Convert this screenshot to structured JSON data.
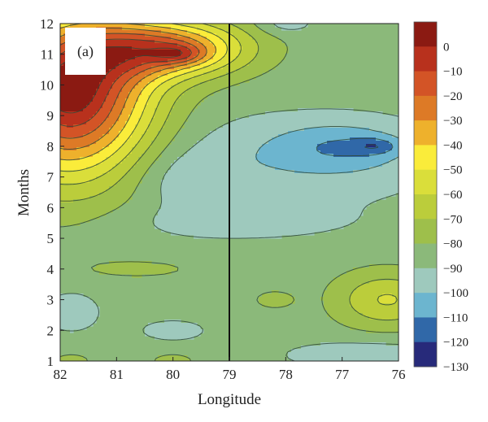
{
  "chart_data": {
    "type": "heatmap",
    "subtype": "filled-contour",
    "panel_label": "(a)",
    "xlabel": "Longitude",
    "ylabel": "Months",
    "x_ticks": [
      "82",
      "81",
      "80",
      "79",
      "78",
      "77",
      "76"
    ],
    "y_ticks": [
      "1",
      "2",
      "3",
      "4",
      "5",
      "6",
      "7",
      "8",
      "9",
      "10",
      "11",
      "12"
    ],
    "xlim": [
      82,
      76
    ],
    "ylim": [
      1,
      12
    ],
    "vertical_marker_x": 79,
    "colorbar": {
      "tick_labels": [
        "0",
        "−10",
        "−20",
        "−30",
        "−40",
        "−50",
        "−60",
        "−70",
        "−80",
        "−90",
        "−100",
        "−110",
        "−120",
        "−130"
      ],
      "bins": [
        {
          "lo": 0,
          "hi": 10,
          "color": "#8b1a12"
        },
        {
          "lo": -10,
          "hi": 0,
          "color": "#b8311d"
        },
        {
          "lo": -20,
          "hi": -10,
          "color": "#d35426"
        },
        {
          "lo": -30,
          "hi": -20,
          "color": "#dd7a26"
        },
        {
          "lo": -40,
          "hi": -30,
          "color": "#eeb12c"
        },
        {
          "lo": -50,
          "hi": -40,
          "color": "#faec3a"
        },
        {
          "lo": -60,
          "hi": -50,
          "color": "#dade3a"
        },
        {
          "lo": -70,
          "hi": -60,
          "color": "#bbcd3b"
        },
        {
          "lo": -80,
          "hi": -70,
          "color": "#9ebf4b"
        },
        {
          "lo": -90,
          "hi": -80,
          "color": "#8bb97a"
        },
        {
          "lo": -100,
          "hi": -90,
          "color": "#9ec9bd"
        },
        {
          "lo": -110,
          "hi": -100,
          "color": "#6cb5cf"
        },
        {
          "lo": -120,
          "hi": -110,
          "color": "#3068a8"
        },
        {
          "lo": -130,
          "hi": -120,
          "color": "#272a7a"
        }
      ]
    },
    "features": [
      {
        "kind": "base",
        "value": -85
      },
      {
        "kind": "blob",
        "x": 78.3,
        "y": 7.5,
        "sx": 3.2,
        "sy": 1.6,
        "amp": -12
      },
      {
        "kind": "blob",
        "x": 79.7,
        "y": 6.8,
        "sx": 0.9,
        "sy": 0.9,
        "amp": -8
      },
      {
        "kind": "blob",
        "x": 77.0,
        "y": 8.0,
        "sx": 1.2,
        "sy": 0.8,
        "amp": -17
      },
      {
        "kind": "blob",
        "x": 76.4,
        "y": 8.0,
        "sx": 0.4,
        "sy": 0.25,
        "amp": -15
      },
      {
        "kind": "blob",
        "x": 79.0,
        "y": 5.5,
        "sx": 2.2,
        "sy": 0.6,
        "amp": -8
      },
      {
        "kind": "blob",
        "x": 78.0,
        "y": 12.0,
        "sx": 0.5,
        "sy": 0.35,
        "amp": -11
      },
      {
        "kind": "blob",
        "x": 81.8,
        "y": 9.5,
        "sx": 1.4,
        "sy": 2.6,
        "amp": 85
      },
      {
        "kind": "blob",
        "x": 81.9,
        "y": 10.0,
        "sx": 0.5,
        "sy": 0.8,
        "amp": 10
      },
      {
        "kind": "blob",
        "x": 80.0,
        "y": 11.2,
        "sx": 1.3,
        "sy": 0.9,
        "amp": 58
      },
      {
        "kind": "blob",
        "x": 79.9,
        "y": 11.0,
        "sx": 0.45,
        "sy": 0.3,
        "amp": 20
      },
      {
        "kind": "blob",
        "x": 81.2,
        "y": 11.0,
        "sx": 1.0,
        "sy": 1.2,
        "amp": 15
      },
      {
        "kind": "blob",
        "x": 81.8,
        "y": 2.6,
        "sx": 0.55,
        "sy": 0.7,
        "amp": -11
      },
      {
        "kind": "blob",
        "x": 80.0,
        "y": 2.0,
        "sx": 0.6,
        "sy": 0.35,
        "amp": -11
      },
      {
        "kind": "blob",
        "x": 78.2,
        "y": 3.0,
        "sx": 0.35,
        "sy": 0.28,
        "amp": 11
      },
      {
        "kind": "blob",
        "x": 76.2,
        "y": 3.0,
        "sx": 0.9,
        "sy": 0.9,
        "amp": 26
      },
      {
        "kind": "blob",
        "x": 76.5,
        "y": 1.2,
        "sx": 1.6,
        "sy": 0.5,
        "amp": -12
      },
      {
        "kind": "blob",
        "x": 80.0,
        "y": 1.0,
        "sx": 0.4,
        "sy": 0.25,
        "amp": 10
      },
      {
        "kind": "blob",
        "x": 81.8,
        "y": 1.0,
        "sx": 0.35,
        "sy": 0.25,
        "amp": 10
      },
      {
        "kind": "blob",
        "x": 80.6,
        "y": 4.0,
        "sx": 1.2,
        "sy": 0.35,
        "amp": 7
      }
    ]
  }
}
